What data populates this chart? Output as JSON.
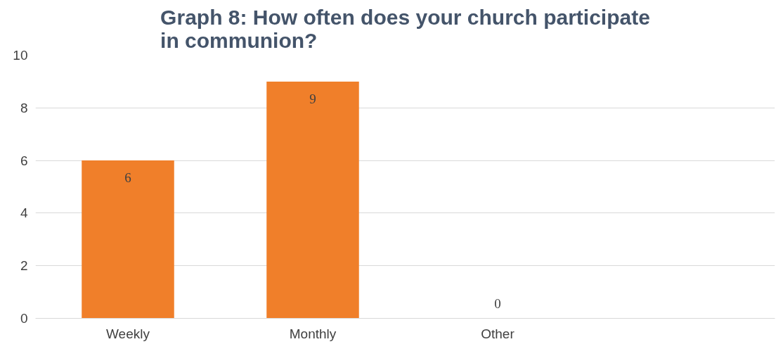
{
  "chart_data": {
    "type": "bar",
    "title": "Graph 8: How often does your church participate\nin communion?",
    "categories": [
      "Weekly",
      "Monthly",
      "Other",
      null
    ],
    "values": [
      6,
      9,
      0,
      null
    ],
    "color": "#f07f2a",
    "ylim": [
      0,
      10
    ],
    "yticks": [
      0,
      2,
      4,
      6,
      8,
      10
    ],
    "grid": "y",
    "data_labels": true
  }
}
